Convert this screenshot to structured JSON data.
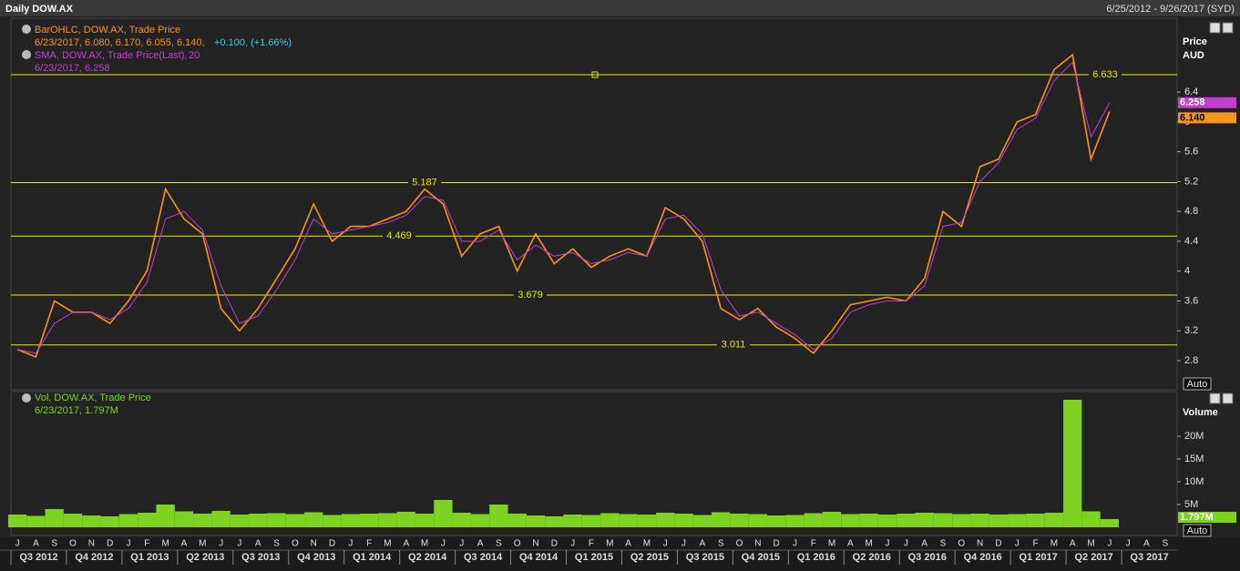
{
  "header": {
    "title": "Daily DOW.AX",
    "range": "6/25/2012 - 9/26/2017 (SYD)"
  },
  "chart_data": {
    "type": "line",
    "price_legend": {
      "name": "BarOHLC, DOW.AX, Trade Price",
      "values": "6/23/2017, 6.080, 6.170, 6.055, 6.140,",
      "change": "+0.100, (+1.66%)"
    },
    "sma_legend": {
      "name": "SMA, DOW.AX, Trade Price(Last),",
      "period": "20",
      "values": "6/23/2017, 6.258"
    },
    "y_title": "Price",
    "y_unit": "AUD",
    "autoscale": "Auto",
    "categories": [
      "J",
      "A",
      "S",
      "O",
      "N",
      "D",
      "J",
      "F",
      "M",
      "A",
      "M",
      "J",
      "J",
      "A",
      "S",
      "O",
      "N",
      "D",
      "J",
      "F",
      "M",
      "A",
      "M",
      "J",
      "J",
      "A",
      "S",
      "O",
      "N",
      "D",
      "J",
      "F",
      "M",
      "A",
      "M",
      "J",
      "J",
      "A",
      "S",
      "O",
      "N",
      "D",
      "J",
      "F",
      "M",
      "A",
      "M",
      "J",
      "J",
      "A",
      "S",
      "O",
      "N",
      "D",
      "J",
      "F",
      "M",
      "A",
      "M",
      "J",
      "J",
      "A",
      "S"
    ],
    "quarters": [
      "Q3 2012",
      "Q4 2012",
      "Q1 2013",
      "Q2 2013",
      "Q3 2013",
      "Q4 2013",
      "Q1 2014",
      "Q2 2014",
      "Q3 2014",
      "Q4 2014",
      "Q1 2015",
      "Q2 2015",
      "Q3 2015",
      "Q4 2015",
      "Q1 2016",
      "Q2 2016",
      "Q3 2016",
      "Q4 2016",
      "Q1 2017",
      "Q2 2017",
      "Q3 2017"
    ],
    "ylim": [
      2.41,
      7.39
    ],
    "yticks": [
      2.8,
      3.2,
      3.6,
      4,
      4.4,
      4.8,
      5.2,
      5.6,
      6,
      6.4
    ],
    "levels": [
      6.633,
      5.187,
      4.469,
      3.679,
      3.011
    ],
    "level_color": "#e8e800",
    "series": [
      {
        "name": "BarOHLC",
        "color": "#f7941d",
        "last_label": "6.140",
        "values": [
          2.95,
          2.85,
          3.6,
          3.45,
          3.45,
          3.3,
          3.6,
          4.0,
          5.1,
          4.7,
          4.5,
          3.5,
          3.2,
          3.5,
          3.9,
          4.3,
          4.9,
          4.4,
          4.6,
          4.6,
          4.7,
          4.8,
          5.1,
          4.9,
          4.2,
          4.5,
          4.6,
          4.0,
          4.5,
          4.1,
          4.3,
          4.05,
          4.2,
          4.3,
          4.2,
          4.85,
          4.7,
          4.4,
          3.5,
          3.35,
          3.5,
          3.25,
          3.1,
          2.9,
          3.2,
          3.55,
          3.6,
          3.65,
          3.6,
          3.9,
          4.8,
          4.6,
          5.4,
          5.5,
          6.0,
          6.1,
          6.7,
          6.9,
          5.5,
          6.14,
          null,
          null,
          null
        ]
      },
      {
        "name": "SMA",
        "color": "#c43fcf",
        "values": [
          2.95,
          2.9,
          3.3,
          3.45,
          3.45,
          3.35,
          3.5,
          3.85,
          4.7,
          4.8,
          4.55,
          3.8,
          3.3,
          3.4,
          3.75,
          4.15,
          4.7,
          4.5,
          4.55,
          4.6,
          4.65,
          4.75,
          5.0,
          4.95,
          4.4,
          4.4,
          4.55,
          4.15,
          4.35,
          4.2,
          4.25,
          4.1,
          4.15,
          4.25,
          4.2,
          4.7,
          4.75,
          4.5,
          3.75,
          3.4,
          3.45,
          3.3,
          3.15,
          2.95,
          3.1,
          3.45,
          3.55,
          3.6,
          3.6,
          3.8,
          4.6,
          4.65,
          5.2,
          5.45,
          5.9,
          6.05,
          6.55,
          6.8,
          5.8,
          6.258,
          null,
          null,
          null
        ]
      }
    ],
    "volume": {
      "name": "Vol, DOW.AX, Trade Price",
      "legend_values": "6/23/2017, 1.797M",
      "title": "Volume",
      "color": "#7ed321",
      "last_label": "1.797M",
      "ylim": [
        0,
        29.8
      ],
      "yticks": [
        {
          "value": 5,
          "label": "5M"
        },
        {
          "value": 10,
          "label": "10M"
        },
        {
          "value": 15,
          "label": "15M"
        },
        {
          "value": 20,
          "label": "20M"
        }
      ],
      "values": [
        2.8,
        2.5,
        4.0,
        3.0,
        2.6,
        2.4,
        2.9,
        3.2,
        5.0,
        3.5,
        3.0,
        3.6,
        2.8,
        3.0,
        3.1,
        2.9,
        3.3,
        2.7,
        2.9,
        3.0,
        3.1,
        3.4,
        3.0,
        6.0,
        3.2,
        2.9,
        5.0,
        3.0,
        2.6,
        2.4,
        2.8,
        2.7,
        3.1,
        2.9,
        2.8,
        3.2,
        3.0,
        2.7,
        3.3,
        3.0,
        2.9,
        2.6,
        2.7,
        3.1,
        3.4,
        2.9,
        3.0,
        2.8,
        3.0,
        3.2,
        3.1,
        2.9,
        3.0,
        2.8,
        2.9,
        3.0,
        3.2,
        28,
        3.5,
        1.797,
        null,
        null,
        null
      ]
    }
  }
}
